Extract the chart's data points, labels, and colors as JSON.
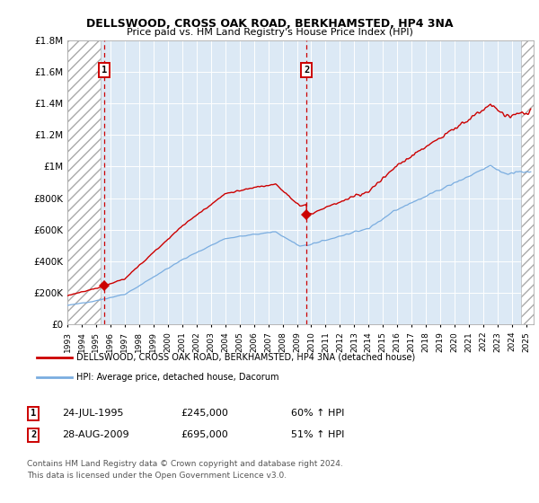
{
  "title": "DELLSWOOD, CROSS OAK ROAD, BERKHAMSTED, HP4 3NA",
  "subtitle": "Price paid vs. HM Land Registry's House Price Index (HPI)",
  "ylim": [
    0,
    1800000
  ],
  "yticks": [
    0,
    200000,
    400000,
    600000,
    800000,
    1000000,
    1200000,
    1400000,
    1600000,
    1800000
  ],
  "ytick_labels": [
    "£0",
    "£200K",
    "£400K",
    "£600K",
    "£800K",
    "£1M",
    "£1.2M",
    "£1.4M",
    "£1.6M",
    "£1.8M"
  ],
  "xlim_start": 1993.0,
  "xlim_end": 2025.5,
  "hatch_end1": 1995.3,
  "hatch_start2": 2024.6,
  "sale1_x": 1995.56,
  "sale1_y": 245000,
  "sale1_label": "1",
  "sale1_date": "24-JUL-1995",
  "sale1_price": "£245,000",
  "sale1_hpi": "60% ↑ HPI",
  "sale2_x": 2009.66,
  "sale2_y": 695000,
  "sale2_label": "2",
  "sale2_date": "28-AUG-2009",
  "sale2_price": "£695,000",
  "sale2_hpi": "51% ↑ HPI",
  "red_color": "#cc0000",
  "blue_color": "#7aade0",
  "plot_bg": "#dce9f5",
  "grid_color": "#ffffff",
  "legend1": "DELLSWOOD, CROSS OAK ROAD, BERKHAMSTED, HP4 3NA (detached house)",
  "legend2": "HPI: Average price, detached house, Dacorum",
  "footnote": "Contains HM Land Registry data © Crown copyright and database right 2024.\nThis data is licensed under the Open Government Licence v3.0."
}
